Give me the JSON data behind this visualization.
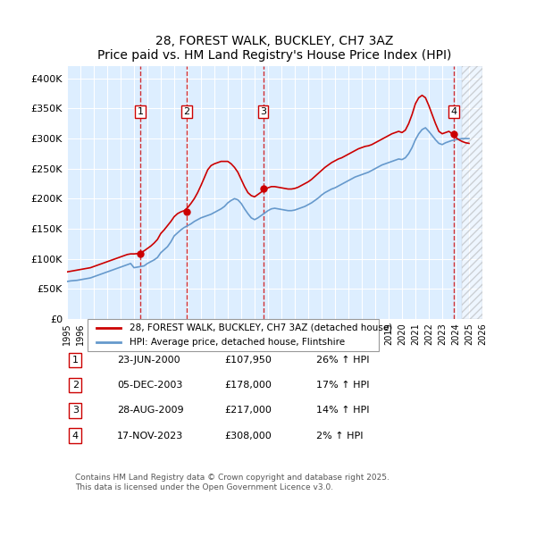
{
  "title": "28, FOREST WALK, BUCKLEY, CH7 3AZ",
  "subtitle": "Price paid vs. HM Land Registry's House Price Index (HPI)",
  "xlim": [
    1995,
    2026
  ],
  "ylim": [
    0,
    420000
  ],
  "yticks": [
    0,
    50000,
    100000,
    150000,
    200000,
    250000,
    300000,
    350000,
    400000
  ],
  "xticks": [
    1995,
    1996,
    1997,
    1998,
    1999,
    2000,
    2001,
    2002,
    2003,
    2004,
    2005,
    2006,
    2007,
    2008,
    2009,
    2010,
    2011,
    2012,
    2013,
    2014,
    2015,
    2016,
    2017,
    2018,
    2019,
    2020,
    2021,
    2022,
    2023,
    2024,
    2025,
    2026
  ],
  "sale_dates": [
    2000.47,
    2003.92,
    2009.65,
    2023.88
  ],
  "sale_prices": [
    107950,
    178000,
    217000,
    308000
  ],
  "sale_labels": [
    "1",
    "2",
    "3",
    "4"
  ],
  "hpi_line_color": "#6699cc",
  "price_line_color": "#cc0000",
  "vline_color": "#cc0000",
  "background_color": "#ddeeff",
  "plot_bg": "#ddeeff",
  "grid_color": "#ffffff",
  "legend_label_price": "28, FOREST WALK, BUCKLEY, CH7 3AZ (detached house)",
  "legend_label_hpi": "HPI: Average price, detached house, Flintshire",
  "table_data": [
    [
      "1",
      "23-JUN-2000",
      "£107,950",
      "26% ↑ HPI"
    ],
    [
      "2",
      "05-DEC-2003",
      "£178,000",
      "17% ↑ HPI"
    ],
    [
      "3",
      "28-AUG-2009",
      "£217,000",
      "14% ↑ HPI"
    ],
    [
      "4",
      "17-NOV-2023",
      "£308,000",
      "2% ↑ HPI"
    ]
  ],
  "footnote": "Contains HM Land Registry data © Crown copyright and database right 2025.\nThis data is licensed under the Open Government Licence v3.0.",
  "hpi_x": [
    1995,
    1995.25,
    1995.5,
    1995.75,
    1996,
    1996.25,
    1996.5,
    1996.75,
    1997,
    1997.25,
    1997.5,
    1997.75,
    1998,
    1998.25,
    1998.5,
    1998.75,
    1999,
    1999.25,
    1999.5,
    1999.75,
    2000,
    2000.25,
    2000.5,
    2000.75,
    2001,
    2001.25,
    2001.5,
    2001.75,
    2002,
    2002.25,
    2002.5,
    2002.75,
    2003,
    2003.25,
    2003.5,
    2003.75,
    2004,
    2004.25,
    2004.5,
    2004.75,
    2005,
    2005.25,
    2005.5,
    2005.75,
    2006,
    2006.25,
    2006.5,
    2006.75,
    2007,
    2007.25,
    2007.5,
    2007.75,
    2008,
    2008.25,
    2008.5,
    2008.75,
    2009,
    2009.25,
    2009.5,
    2009.75,
    2010,
    2010.25,
    2010.5,
    2010.75,
    2011,
    2011.25,
    2011.5,
    2011.75,
    2012,
    2012.25,
    2012.5,
    2012.75,
    2013,
    2013.25,
    2013.5,
    2013.75,
    2014,
    2014.25,
    2014.5,
    2014.75,
    2015,
    2015.25,
    2015.5,
    2015.75,
    2016,
    2016.25,
    2016.5,
    2016.75,
    2017,
    2017.25,
    2017.5,
    2017.75,
    2018,
    2018.25,
    2018.5,
    2018.75,
    2019,
    2019.25,
    2019.5,
    2019.75,
    2020,
    2020.25,
    2020.5,
    2020.75,
    2021,
    2021.25,
    2021.5,
    2021.75,
    2022,
    2022.25,
    2022.5,
    2022.75,
    2023,
    2023.25,
    2023.5,
    2023.75,
    2024,
    2024.25,
    2024.5,
    2024.75,
    2025
  ],
  "hpi_y": [
    62000,
    63000,
    63500,
    64000,
    65000,
    66000,
    67000,
    68000,
    70000,
    72000,
    74000,
    76000,
    78000,
    80000,
    82000,
    84000,
    86000,
    88000,
    90000,
    92000,
    85000,
    86000,
    87000,
    88000,
    92000,
    95000,
    98000,
    102000,
    110000,
    115000,
    120000,
    128000,
    138000,
    143000,
    148000,
    152000,
    155000,
    158000,
    162000,
    165000,
    168000,
    170000,
    172000,
    174000,
    177000,
    180000,
    183000,
    187000,
    193000,
    197000,
    200000,
    198000,
    192000,
    183000,
    175000,
    168000,
    165000,
    168000,
    172000,
    176000,
    180000,
    183000,
    184000,
    183000,
    182000,
    181000,
    180000,
    180000,
    181000,
    183000,
    185000,
    187000,
    190000,
    193000,
    197000,
    201000,
    206000,
    210000,
    213000,
    216000,
    218000,
    221000,
    224000,
    227000,
    230000,
    233000,
    236000,
    238000,
    240000,
    242000,
    244000,
    247000,
    250000,
    253000,
    256000,
    258000,
    260000,
    262000,
    264000,
    266000,
    265000,
    268000,
    275000,
    285000,
    298000,
    308000,
    315000,
    318000,
    312000,
    305000,
    298000,
    292000,
    290000,
    293000,
    295000,
    297000,
    298000,
    299000,
    300000,
    300000,
    300000
  ],
  "price_x": [
    1995,
    1995.25,
    1995.5,
    1995.75,
    1996,
    1996.25,
    1996.5,
    1996.75,
    1997,
    1997.25,
    1997.5,
    1997.75,
    1998,
    1998.25,
    1998.5,
    1998.75,
    1999,
    1999.25,
    1999.5,
    1999.75,
    2000,
    2000.25,
    2000.5,
    2000.75,
    2001,
    2001.25,
    2001.5,
    2001.75,
    2002,
    2002.25,
    2002.5,
    2002.75,
    2003,
    2003.25,
    2003.5,
    2003.75,
    2004,
    2004.25,
    2004.5,
    2004.75,
    2005,
    2005.25,
    2005.5,
    2005.75,
    2006,
    2006.25,
    2006.5,
    2006.75,
    2007,
    2007.25,
    2007.5,
    2007.75,
    2008,
    2008.25,
    2008.5,
    2008.75,
    2009,
    2009.25,
    2009.5,
    2009.75,
    2010,
    2010.25,
    2010.5,
    2010.75,
    2011,
    2011.25,
    2011.5,
    2011.75,
    2012,
    2012.25,
    2012.5,
    2012.75,
    2013,
    2013.25,
    2013.5,
    2013.75,
    2014,
    2014.25,
    2014.5,
    2014.75,
    2015,
    2015.25,
    2015.5,
    2015.75,
    2016,
    2016.25,
    2016.5,
    2016.75,
    2017,
    2017.25,
    2017.5,
    2017.75,
    2018,
    2018.25,
    2018.5,
    2018.75,
    2019,
    2019.25,
    2019.5,
    2019.75,
    2020,
    2020.25,
    2020.5,
    2020.75,
    2021,
    2021.25,
    2021.5,
    2021.75,
    2022,
    2022.25,
    2022.5,
    2022.75,
    2023,
    2023.25,
    2023.5,
    2023.75,
    2024,
    2024.25,
    2024.5,
    2024.75,
    2025
  ],
  "price_y": [
    78000,
    79000,
    80000,
    81000,
    82000,
    83000,
    84000,
    85000,
    87000,
    89000,
    91000,
    93000,
    95000,
    97000,
    99000,
    101000,
    103000,
    105000,
    107000,
    108000,
    107950,
    108500,
    110000,
    113000,
    117000,
    121000,
    126000,
    132000,
    142000,
    148000,
    155000,
    162000,
    170000,
    175000,
    178000,
    180000,
    185000,
    192000,
    200000,
    210000,
    222000,
    235000,
    248000,
    255000,
    258000,
    260000,
    262000,
    262000,
    262000,
    258000,
    252000,
    244000,
    232000,
    220000,
    210000,
    205000,
    203000,
    207000,
    211000,
    215000,
    218000,
    220000,
    220000,
    219000,
    218000,
    217000,
    216000,
    216000,
    217000,
    219000,
    222000,
    225000,
    228000,
    232000,
    237000,
    242000,
    247000,
    252000,
    256000,
    260000,
    263000,
    266000,
    268000,
    271000,
    274000,
    277000,
    280000,
    283000,
    285000,
    287000,
    288000,
    290000,
    293000,
    296000,
    299000,
    302000,
    305000,
    308000,
    310000,
    312000,
    310000,
    314000,
    325000,
    340000,
    358000,
    368000,
    372000,
    368000,
    355000,
    340000,
    325000,
    312000,
    308000,
    310000,
    312000,
    308000,
    302000,
    298000,
    295000,
    293000,
    292000
  ]
}
